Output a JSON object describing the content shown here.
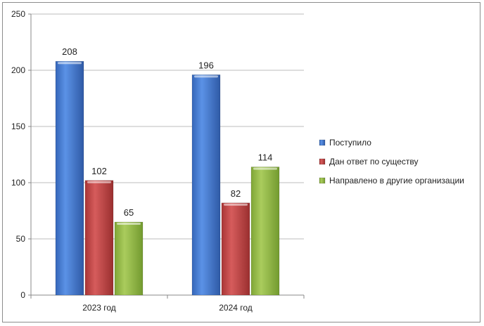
{
  "chart_data": {
    "type": "bar",
    "categories": [
      "2023 год",
      "2024 год"
    ],
    "series": [
      {
        "name": "Поступило",
        "values": [
          208,
          196
        ],
        "color": "#4a7fd3"
      },
      {
        "name": "Дан ответ по существу",
        "values": [
          102,
          82
        ],
        "color": "#c94a4a"
      },
      {
        "name": "Направлено в другие организации",
        "values": [
          65,
          114
        ],
        "color": "#9bbf4c"
      }
    ],
    "ylim": [
      0,
      250
    ],
    "yticks": [
      0,
      50,
      100,
      150,
      200,
      250
    ],
    "grid": true,
    "legend": "right"
  }
}
